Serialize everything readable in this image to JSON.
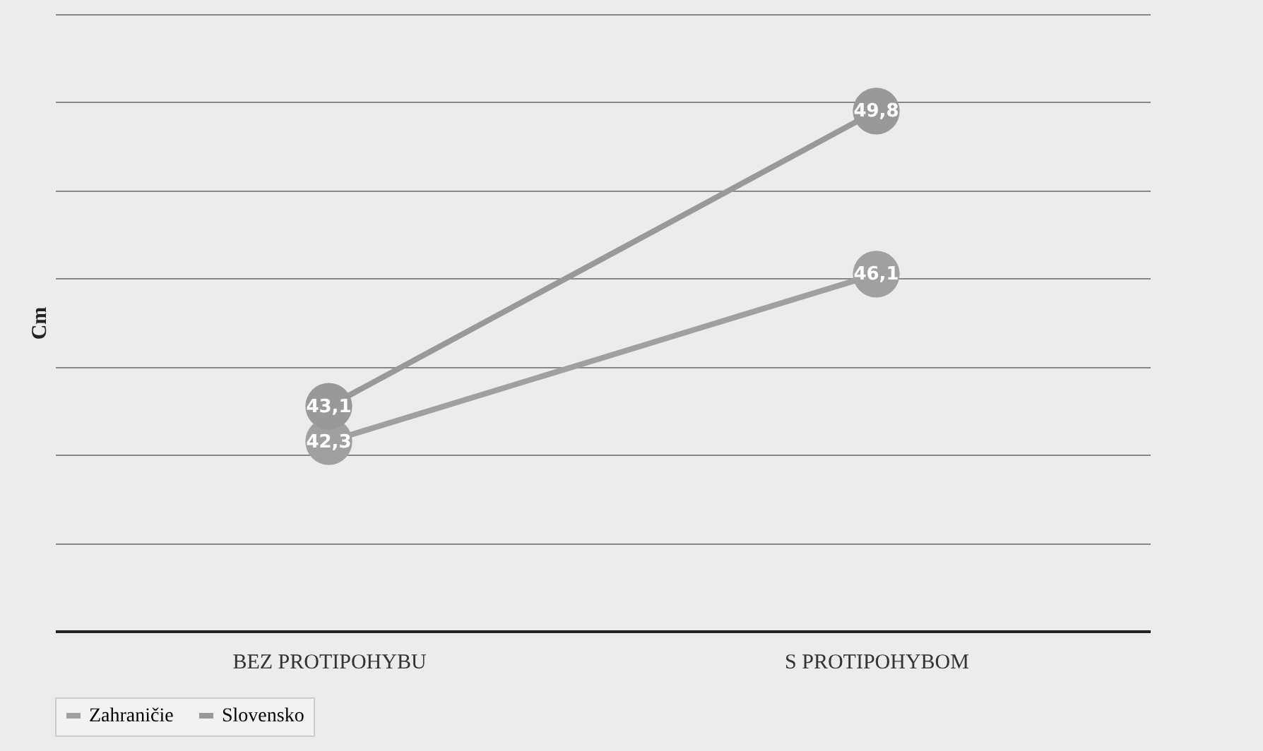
{
  "chart_data": {
    "type": "line",
    "ylabel": "Cm",
    "categories": [
      "BEZ PROTIPOHYBU",
      "S PROTIPOHYBOM"
    ],
    "series": [
      {
        "name": "Zahraničie",
        "color": "#a0a0a0",
        "values": [
          42.3,
          46.1
        ],
        "value_labels": [
          "42,3",
          "46,1"
        ]
      },
      {
        "name": "Slovensko",
        "color": "#999999",
        "values": [
          43.1,
          49.8
        ],
        "value_labels": [
          "43,1",
          "49,8"
        ]
      }
    ],
    "ylim": [
      38,
      52
    ],
    "yticks": [
      {
        "value": 38,
        "label": null
      },
      {
        "value": 40,
        "label": null
      },
      {
        "value": 42,
        "label": null
      },
      {
        "value": 44,
        "label": null
      },
      {
        "value": 46,
        "label": null
      },
      {
        "value": 48,
        "label": null
      },
      {
        "value": 50,
        "label": null
      },
      {
        "value": 52,
        "label": null
      }
    ],
    "tick_labels": "x",
    "grid": "y",
    "legend": "bottom",
    "marker": "circle",
    "line_style": "solid"
  }
}
